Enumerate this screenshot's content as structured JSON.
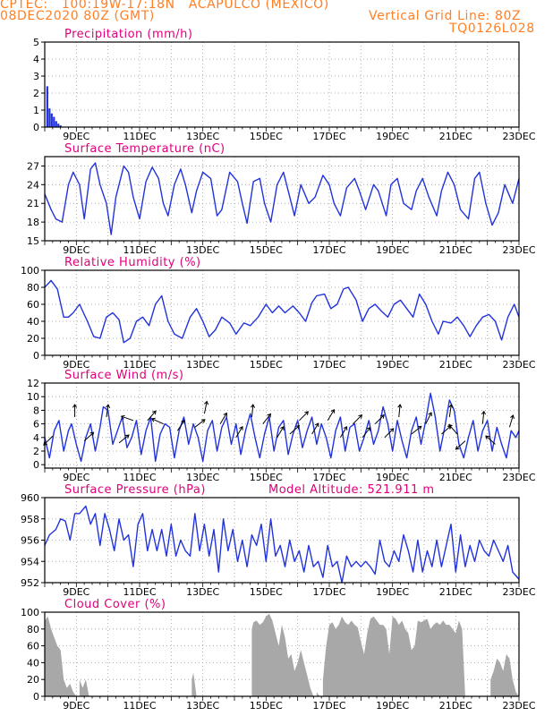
{
  "header": {
    "line1": "CPTEC:   100:19W-17:18N   ACAPULCO (MEXICO)",
    "line2": "08DEC2020 80Z (GMT)",
    "grid_note": "Vertical Grid Line: 80Z",
    "code": "TQ0126L028"
  },
  "colors": {
    "header": "#ff7f26",
    "panel_title": "#e0007a",
    "line": "#2233dd",
    "cloud_fill": "#a8a8a8",
    "precip_bar": "#2233dd",
    "arrow": "#000000"
  },
  "x_axis": {
    "start_day": 8,
    "end_day": 23,
    "tick_labels": [
      "9DEC",
      "11DEC",
      "13DEC",
      "15DEC",
      "17DEC",
      "19DEC",
      "21DEC",
      "23DEC"
    ],
    "tick_days": [
      9,
      11,
      13,
      15,
      17,
      19,
      21,
      23
    ]
  },
  "chart_data": [
    {
      "type": "bar",
      "title": "Precipitation (mm/h)",
      "ylim": [
        0,
        5
      ],
      "yticks": [
        0,
        1,
        2,
        3,
        4,
        5
      ],
      "x": [
        8.05,
        8.12,
        8.19,
        8.26,
        8.33,
        8.4,
        8.47
      ],
      "values": [
        2.4,
        1.1,
        0.8,
        0.6,
        0.35,
        0.2,
        0.1
      ]
    },
    {
      "type": "line",
      "title": "Surface Temperature (nC)",
      "ylim": [
        15,
        28.5
      ],
      "yticks": [
        15,
        18,
        21,
        24,
        27
      ],
      "x": [
        8.0,
        8.2,
        8.35,
        8.55,
        8.75,
        8.9,
        9.1,
        9.25,
        9.45,
        9.6,
        9.75,
        9.95,
        10.1,
        10.25,
        10.5,
        10.65,
        10.8,
        11.0,
        11.2,
        11.4,
        11.6,
        11.75,
        11.9,
        12.1,
        12.3,
        12.45,
        12.65,
        12.8,
        13.0,
        13.25,
        13.45,
        13.6,
        13.85,
        14.1,
        14.25,
        14.4,
        14.6,
        14.8,
        14.95,
        15.15,
        15.35,
        15.55,
        15.7,
        15.9,
        16.1,
        16.35,
        16.55,
        16.8,
        17.0,
        17.15,
        17.35,
        17.55,
        17.8,
        17.95,
        18.15,
        18.4,
        18.55,
        18.8,
        18.95,
        19.15,
        19.35,
        19.6,
        19.75,
        19.95,
        20.15,
        20.4,
        20.55,
        20.75,
        20.95,
        21.15,
        21.4,
        21.6,
        21.75,
        21.95,
        22.15,
        22.35,
        22.55,
        22.8,
        23.0
      ],
      "values": [
        22.5,
        20.0,
        18.5,
        18.0,
        24.0,
        26.0,
        24.0,
        18.5,
        26.5,
        27.5,
        24.0,
        21.0,
        16.0,
        22.0,
        27.0,
        26.0,
        22.0,
        18.5,
        24.5,
        26.8,
        25.0,
        21.0,
        19.0,
        24.0,
        26.5,
        24.0,
        19.5,
        23.0,
        26.0,
        25.0,
        19.0,
        20.0,
        26.0,
        24.5,
        21.0,
        17.8,
        24.5,
        25.0,
        21.0,
        18.0,
        24.0,
        26.0,
        23.0,
        19.0,
        24.0,
        21.0,
        22.0,
        25.5,
        24.0,
        21.0,
        19.0,
        23.5,
        25.0,
        23.0,
        20.0,
        24.0,
        23.0,
        19.0,
        24.0,
        25.0,
        21.0,
        20.0,
        23.0,
        25.0,
        22.0,
        19.0,
        23.0,
        26.0,
        24.0,
        20.0,
        18.5,
        25.0,
        26.0,
        21.0,
        17.5,
        19.5,
        24.0,
        21.0,
        25.0
      ]
    },
    {
      "type": "line",
      "title": "Relative Humidity (%)",
      "ylim": [
        0,
        100
      ],
      "yticks": [
        0,
        20,
        40,
        60,
        80,
        100
      ],
      "x": [
        8.0,
        8.2,
        8.4,
        8.6,
        8.75,
        8.9,
        9.1,
        9.35,
        9.55,
        9.75,
        9.95,
        10.15,
        10.35,
        10.5,
        10.7,
        10.9,
        11.1,
        11.3,
        11.5,
        11.7,
        11.9,
        12.1,
        12.35,
        12.6,
        12.8,
        13.0,
        13.2,
        13.4,
        13.6,
        13.85,
        14.05,
        14.3,
        14.5,
        14.75,
        15.0,
        15.2,
        15.4,
        15.6,
        15.85,
        16.05,
        16.25,
        16.45,
        16.6,
        16.85,
        17.05,
        17.25,
        17.45,
        17.6,
        17.85,
        18.05,
        18.25,
        18.45,
        18.65,
        18.85,
        19.05,
        19.25,
        19.45,
        19.65,
        19.85,
        20.05,
        20.25,
        20.45,
        20.6,
        20.85,
        21.05,
        21.25,
        21.45,
        21.65,
        21.85,
        22.05,
        22.25,
        22.45,
        22.65,
        22.85,
        23.0
      ],
      "values": [
        80,
        88,
        78,
        45,
        45,
        50,
        60,
        40,
        22,
        20,
        45,
        50,
        42,
        15,
        20,
        40,
        45,
        35,
        60,
        70,
        40,
        25,
        20,
        45,
        55,
        40,
        22,
        30,
        45,
        38,
        25,
        38,
        35,
        45,
        60,
        50,
        58,
        50,
        58,
        50,
        40,
        62,
        70,
        72,
        55,
        60,
        78,
        80,
        65,
        40,
        55,
        60,
        52,
        45,
        60,
        65,
        55,
        45,
        72,
        60,
        40,
        25,
        40,
        38,
        45,
        35,
        22,
        35,
        45,
        48,
        40,
        18,
        45,
        60,
        45
      ]
    },
    {
      "type": "line",
      "title": "Surface Wind (m/s)",
      "ylim": [
        -0.5,
        12
      ],
      "yticks": [
        0,
        2,
        4,
        6,
        8,
        10,
        12
      ],
      "x": [
        8.0,
        8.15,
        8.3,
        8.45,
        8.6,
        8.75,
        8.85,
        9.0,
        9.15,
        9.3,
        9.45,
        9.6,
        9.75,
        9.85,
        10.0,
        10.15,
        10.3,
        10.45,
        10.6,
        10.75,
        10.9,
        11.05,
        11.2,
        11.35,
        11.5,
        11.65,
        11.8,
        11.95,
        12.1,
        12.25,
        12.4,
        12.55,
        12.7,
        12.85,
        13.0,
        13.15,
        13.3,
        13.45,
        13.6,
        13.75,
        13.9,
        14.05,
        14.2,
        14.35,
        14.5,
        14.65,
        14.8,
        14.95,
        15.1,
        15.25,
        15.4,
        15.55,
        15.7,
        15.85,
        16.0,
        16.15,
        16.3,
        16.45,
        16.6,
        16.75,
        16.9,
        17.05,
        17.2,
        17.35,
        17.5,
        17.65,
        17.8,
        17.95,
        18.1,
        18.25,
        18.4,
        18.55,
        18.7,
        18.85,
        19.0,
        19.15,
        19.3,
        19.45,
        19.6,
        19.75,
        19.9,
        20.05,
        20.2,
        20.35,
        20.5,
        20.65,
        20.8,
        20.95,
        21.1,
        21.25,
        21.4,
        21.55,
        21.7,
        21.85,
        22.0,
        22.15,
        22.3,
        22.45,
        22.6,
        22.75,
        22.9,
        23.0
      ],
      "values": [
        4.0,
        1.0,
        5.0,
        6.5,
        2.0,
        5.0,
        6.0,
        3.0,
        0.5,
        4.0,
        6.0,
        2.0,
        5.5,
        8.5,
        8.0,
        3.0,
        5.0,
        7.0,
        2.5,
        4.0,
        6.5,
        1.5,
        5.0,
        7.0,
        0.5,
        4.5,
        6.0,
        5.5,
        1.0,
        5.0,
        7.0,
        3.0,
        6.0,
        4.0,
        0.5,
        5.0,
        6.5,
        2.0,
        5.5,
        7.0,
        3.0,
        6.0,
        1.5,
        5.0,
        7.5,
        4.0,
        1.0,
        4.5,
        7.0,
        2.0,
        5.5,
        6.5,
        1.5,
        4.5,
        6.5,
        2.5,
        5.0,
        7.0,
        3.0,
        6.0,
        4.0,
        1.0,
        5.0,
        7.0,
        2.0,
        5.5,
        6.0,
        2.0,
        4.0,
        6.5,
        3.0,
        5.0,
        8.5,
        6.0,
        2.0,
        6.5,
        3.5,
        1.0,
        5.0,
        7.0,
        3.0,
        6.5,
        10.5,
        7.0,
        2.0,
        5.5,
        9.5,
        8.0,
        3.0,
        1.0,
        4.0,
        6.5,
        2.0,
        5.0,
        6.5,
        2.0,
        5.5,
        3.0,
        1.0,
        5.0,
        4.0,
        5.0
      ],
      "arrows": [
        {
          "x": 8.25,
          "speed": 4.2,
          "dx": -0.9,
          "dy": -0.9
        },
        {
          "x": 8.95,
          "speed": 7.0,
          "dx": 0.0,
          "dy": 1.0
        },
        {
          "x": 9.25,
          "speed": 3.5,
          "dx": 1.0,
          "dy": 0.9
        },
        {
          "x": 9.95,
          "speed": 7.0,
          "dx": 0.15,
          "dy": 1.0
        },
        {
          "x": 10.35,
          "speed": 3.2,
          "dx": 1.0,
          "dy": 0.8
        },
        {
          "x": 10.8,
          "speed": 6.5,
          "dx": -1.0,
          "dy": 0.35
        },
        {
          "x": 11.25,
          "speed": 6.5,
          "dx": 0.7,
          "dy": 0.8
        },
        {
          "x": 11.75,
          "speed": 6.0,
          "dx": -1.0,
          "dy": 0.45
        },
        {
          "x": 12.2,
          "speed": 5.0,
          "dx": 0.6,
          "dy": 0.9
        },
        {
          "x": 12.75,
          "speed": 5.5,
          "dx": 0.9,
          "dy": 0.7
        },
        {
          "x": 13.05,
          "speed": 7.5,
          "dx": 0.2,
          "dy": 1.0
        },
        {
          "x": 13.55,
          "speed": 6.0,
          "dx": 0.6,
          "dy": 1.0
        },
        {
          "x": 14.05,
          "speed": 4.0,
          "dx": 0.6,
          "dy": 1.0
        },
        {
          "x": 14.55,
          "speed": 7.0,
          "dx": 0.1,
          "dy": 1.0
        },
        {
          "x": 14.9,
          "speed": 6.0,
          "dx": 0.7,
          "dy": 0.9
        },
        {
          "x": 15.35,
          "speed": 4.0,
          "dx": 0.6,
          "dy": 1.0
        },
        {
          "x": 15.75,
          "speed": 4.5,
          "dx": 0.9,
          "dy": 0.8
        },
        {
          "x": 16.05,
          "speed": 6.5,
          "dx": 0.8,
          "dy": 0.8
        },
        {
          "x": 16.45,
          "speed": 4.5,
          "dx": 0.6,
          "dy": 1.0
        },
        {
          "x": 16.95,
          "speed": 6.5,
          "dx": 0.6,
          "dy": 1.0
        },
        {
          "x": 17.35,
          "speed": 4.0,
          "dx": 0.6,
          "dy": 1.0
        },
        {
          "x": 17.75,
          "speed": 6.0,
          "dx": 0.8,
          "dy": 0.8
        },
        {
          "x": 18.05,
          "speed": 4.0,
          "dx": 0.7,
          "dy": 0.9
        },
        {
          "x": 18.45,
          "speed": 6.0,
          "dx": 0.8,
          "dy": 0.8
        },
        {
          "x": 18.75,
          "speed": 4.0,
          "dx": 0.8,
          "dy": 0.8
        },
        {
          "x": 19.2,
          "speed": 7.0,
          "dx": 0.1,
          "dy": 1.0
        },
        {
          "x": 19.6,
          "speed": 4.5,
          "dx": 1.0,
          "dy": 0.8
        },
        {
          "x": 20.05,
          "speed": 6.0,
          "dx": 0.5,
          "dy": 1.0
        },
        {
          "x": 20.55,
          "speed": 4.5,
          "dx": 0.8,
          "dy": 0.7
        },
        {
          "x": 20.8,
          "speed": 7.0,
          "dx": 0.15,
          "dy": 1.0
        },
        {
          "x": 21.05,
          "speed": 4.5,
          "dx": -0.8,
          "dy": 0.9
        },
        {
          "x": 21.3,
          "speed": 3.5,
          "dx": -1.0,
          "dy": -0.9
        },
        {
          "x": 21.85,
          "speed": 6.0,
          "dx": 0.1,
          "dy": 1.0
        },
        {
          "x": 22.25,
          "speed": 3.0,
          "dx": -0.9,
          "dy": 0.8
        },
        {
          "x": 22.7,
          "speed": 5.5,
          "dx": 0.3,
          "dy": 1.0
        }
      ]
    },
    {
      "type": "line",
      "title": "Surface Pressure (hPa)",
      "annotation": "Model Altitude: 521.911  m",
      "ylim": [
        952,
        960
      ],
      "yticks": [
        952,
        954,
        956,
        958,
        960
      ],
      "x": [
        8.0,
        8.15,
        8.35,
        8.5,
        8.65,
        8.8,
        8.95,
        9.1,
        9.3,
        9.45,
        9.6,
        9.75,
        9.9,
        10.05,
        10.2,
        10.35,
        10.5,
        10.65,
        10.8,
        10.95,
        11.1,
        11.25,
        11.4,
        11.55,
        11.7,
        11.85,
        12.0,
        12.15,
        12.3,
        12.45,
        12.6,
        12.75,
        12.9,
        13.05,
        13.2,
        13.35,
        13.5,
        13.65,
        13.8,
        13.95,
        14.1,
        14.25,
        14.4,
        14.55,
        14.7,
        14.85,
        15.0,
        15.15,
        15.3,
        15.45,
        15.6,
        15.75,
        15.9,
        16.05,
        16.2,
        16.35,
        16.5,
        16.65,
        16.8,
        16.95,
        17.1,
        17.25,
        17.4,
        17.55,
        17.7,
        17.85,
        18.0,
        18.15,
        18.3,
        18.45,
        18.6,
        18.75,
        18.9,
        19.05,
        19.2,
        19.35,
        19.5,
        19.65,
        19.8,
        19.95,
        20.1,
        20.25,
        20.4,
        20.55,
        20.7,
        20.85,
        21.0,
        21.15,
        21.3,
        21.45,
        21.6,
        21.75,
        21.9,
        22.05,
        22.2,
        22.35,
        22.5,
        22.65,
        22.8,
        22.95,
        23.0
      ],
      "values": [
        955.5,
        956.5,
        957.0,
        958.0,
        957.8,
        956.0,
        958.5,
        958.5,
        959.2,
        957.5,
        958.5,
        955.5,
        958.5,
        957.0,
        955.0,
        958.0,
        956.0,
        956.5,
        953.5,
        957.5,
        958.5,
        955.0,
        957.0,
        955.0,
        957.0,
        954.5,
        957.5,
        954.5,
        956.0,
        955.0,
        954.5,
        958.5,
        955.0,
        957.5,
        954.5,
        957.0,
        953.0,
        958.0,
        955.0,
        957.0,
        954.0,
        956.0,
        953.5,
        956.5,
        955.5,
        957.5,
        954.0,
        958.0,
        954.5,
        955.5,
        953.5,
        956.0,
        954.0,
        955.0,
        953.0,
        955.5,
        953.5,
        954.0,
        952.5,
        955.5,
        953.5,
        954.0,
        952.0,
        954.5,
        953.5,
        954.0,
        953.5,
        954.0,
        953.5,
        952.8,
        956.0,
        954.0,
        953.5,
        955.0,
        954.0,
        956.5,
        955.0,
        953.0,
        956.0,
        953.0,
        955.0,
        953.5,
        956.0,
        953.5,
        955.5,
        957.5,
        953.0,
        956.5,
        953.5,
        955.5,
        954.0,
        956.0,
        955.0,
        954.5,
        956.0,
        955.0,
        954.0,
        955.5,
        953.0,
        952.5,
        952.3
      ]
    },
    {
      "type": "area",
      "title": "Cloud Cover (%)",
      "ylim": [
        0,
        100
      ],
      "yticks": [
        0,
        20,
        40,
        60,
        80,
        100
      ],
      "x": [
        8.0,
        8.1,
        8.2,
        8.3,
        8.4,
        8.5,
        8.6,
        8.7,
        8.8,
        8.9,
        9.0,
        9.1,
        9.2,
        9.3,
        9.4,
        9.5,
        12.6,
        12.65,
        12.7,
        12.75,
        12.8,
        14.5,
        14.55,
        14.6,
        14.7,
        14.8,
        14.9,
        15.0,
        15.1,
        15.2,
        15.3,
        15.4,
        15.5,
        15.6,
        15.7,
        15.8,
        15.9,
        16.0,
        16.1,
        16.2,
        16.3,
        16.4,
        16.5,
        16.6,
        16.7,
        16.8,
        16.9,
        17.0,
        17.1,
        17.2,
        17.3,
        17.4,
        17.5,
        17.6,
        17.7,
        17.8,
        17.9,
        18.0,
        18.1,
        18.2,
        18.3,
        18.4,
        18.5,
        18.6,
        18.7,
        18.8,
        18.9,
        19.0,
        19.1,
        19.2,
        19.3,
        19.4,
        19.5,
        19.6,
        19.7,
        19.8,
        19.9,
        20.0,
        20.1,
        20.2,
        20.3,
        20.4,
        20.5,
        20.6,
        20.7,
        20.8,
        20.9,
        21.0,
        21.1,
        21.2,
        21.3,
        22.0,
        22.1,
        22.2,
        22.3,
        22.4,
        22.5,
        22.6,
        22.7,
        22.8,
        22.9,
        23.0
      ],
      "values": [
        90,
        95,
        80,
        70,
        60,
        55,
        20,
        10,
        15,
        5,
        0,
        20,
        10,
        20,
        0,
        0,
        0,
        20,
        28,
        15,
        0,
        0,
        80,
        88,
        90,
        85,
        88,
        95,
        98,
        90,
        75,
        60,
        85,
        70,
        45,
        50,
        30,
        40,
        55,
        40,
        25,
        10,
        0,
        5,
        0,
        20,
        60,
        85,
        88,
        80,
        85,
        95,
        88,
        85,
        90,
        85,
        82,
        65,
        50,
        75,
        92,
        95,
        90,
        85,
        85,
        80,
        50,
        95,
        92,
        85,
        90,
        80,
        75,
        55,
        60,
        90,
        88,
        90,
        92,
        80,
        85,
        88,
        85,
        90,
        85,
        85,
        80,
        75,
        90,
        80,
        0,
        0,
        20,
        30,
        45,
        40,
        30,
        50,
        45,
        20,
        5,
        0
      ]
    }
  ]
}
